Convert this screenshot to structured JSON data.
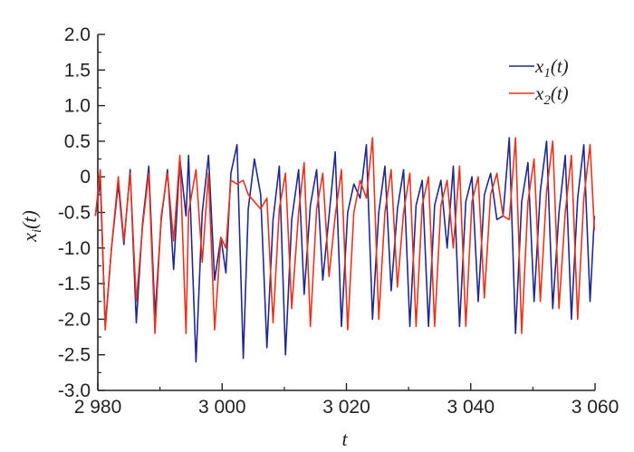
{
  "chart_data": {
    "type": "line",
    "xlabel": "t",
    "ylabel": "x_i(t)",
    "xlim": [
      2980,
      3060
    ],
    "ylim": [
      -3.0,
      2.0
    ],
    "x_ticks": [
      2980,
      3000,
      3020,
      3040,
      3060
    ],
    "x_tick_labels": [
      "2 980",
      "3 000",
      "3 020",
      "3 040",
      "3 060"
    ],
    "y_ticks": [
      -3.0,
      -2.5,
      -2.0,
      -1.5,
      -1.0,
      -0.5,
      0,
      0.5,
      1.0,
      1.5,
      2.0
    ],
    "y_tick_labels": [
      "-3.0",
      "-2.5",
      "-2.0",
      "-1.5",
      "-1.0",
      "-0.5",
      "0",
      "0.5",
      "1.0",
      "1.5",
      "2.0"
    ],
    "legend_position": "top-right",
    "grid": false,
    "series": [
      {
        "name": "x1(t)",
        "color": "#1f2a8c",
        "x": [
          2979.6,
          2980.4,
          2981.2,
          2982.2,
          2983.3,
          2984.2,
          2985.2,
          2986.2,
          2987.2,
          2988.2,
          2989.2,
          2990.2,
          2991.2,
          2992.2,
          2993.2,
          2994.2,
          2994.6,
          2995.8,
          2996.8,
          2997.8,
          2998.8,
          2999.8,
          3000.6,
          3001.4,
          3002.4,
          3003.4,
          3004.2,
          3005.2,
          3006.2,
          3007.2,
          3008.2,
          3009.2,
          3010.2,
          3011.2,
          3012.3,
          3013.2,
          3014.2,
          3015.2,
          3016.2,
          3017.2,
          3018.2,
          3019.2,
          3020.2,
          3021.2,
          3022.2,
          3023.2,
          3024.2,
          3025.2,
          3026.2,
          3027.2,
          3028.2,
          3029.2,
          3030.2,
          3031.2,
          3032.2,
          3033.2,
          3034.2,
          3035.2,
          3036.2,
          3037.2,
          3038.2,
          3039.2,
          3040.2,
          3041.2,
          3042.2,
          3043.2,
          3044.2,
          3045.2,
          3046.2,
          3047.2,
          3048.2,
          3049.2,
          3050.2,
          3051.2,
          3052.2,
          3053.2,
          3054.2,
          3055.2,
          3056.2,
          3057.2,
          3058.2,
          3059.2,
          3059.9
        ],
        "y": [
          -0.55,
          -0.05,
          -2.1,
          -1.0,
          -0.1,
          -0.95,
          0.1,
          -2.05,
          -0.65,
          0.15,
          -1.95,
          -0.6,
          0.1,
          -1.3,
          0.25,
          -0.55,
          0.3,
          -2.6,
          -0.5,
          0.3,
          -1.45,
          -0.85,
          -1.35,
          0.05,
          0.45,
          -2.55,
          -0.45,
          0.25,
          -0.25,
          -2.4,
          -0.6,
          0.15,
          -2.5,
          -0.6,
          0.1,
          -1.65,
          -0.4,
          0.1,
          -1.45,
          -0.55,
          0.35,
          -2.1,
          -0.5,
          -0.1,
          -0.3,
          0.45,
          -2.0,
          -0.5,
          0.15,
          -1.6,
          -0.45,
          0.1,
          -2.1,
          -0.4,
          -0.05,
          -2.1,
          -0.4,
          -0.05,
          -1.0,
          0.15,
          -2.1,
          -0.35,
          0.0,
          -1.75,
          -0.25,
          0.05,
          -0.6,
          -0.55,
          0.55,
          -2.2,
          -0.35,
          0.2,
          -1.75,
          -0.2,
          0.5,
          -1.85,
          -0.5,
          0.3,
          -2.0,
          -0.3,
          0.45,
          -1.75,
          -0.55
        ]
      },
      {
        "name": "x2(t)",
        "color": "#e8341c",
        "x": [
          2979.6,
          2980.4,
          2981.2,
          2982.2,
          2983.3,
          2984.2,
          2985.2,
          2986.2,
          2987.2,
          2988.2,
          2989.2,
          2990.2,
          2991.2,
          2992.2,
          2993.2,
          2994.2,
          2994.6,
          2995.8,
          2996.8,
          2997.8,
          2998.8,
          2999.8,
          3000.6,
          3001.4,
          3002.4,
          3003.4,
          3004.2,
          3005.2,
          3006.2,
          3007.2,
          3008.2,
          3009.2,
          3010.2,
          3011.2,
          3012.3,
          3013.2,
          3014.2,
          3015.2,
          3016.2,
          3017.2,
          3018.2,
          3019.2,
          3020.2,
          3021.2,
          3022.2,
          3023.2,
          3024.2,
          3025.2,
          3026.2,
          3027.2,
          3028.2,
          3029.2,
          3030.2,
          3031.2,
          3032.2,
          3033.2,
          3034.2,
          3035.2,
          3036.2,
          3037.2,
          3038.2,
          3039.2,
          3040.2,
          3041.2,
          3042.2,
          3043.2,
          3044.2,
          3045.2,
          3046.2,
          3047.2,
          3048.2,
          3049.2,
          3050.2,
          3051.2,
          3052.2,
          3053.2,
          3054.2,
          3055.2,
          3056.2,
          3057.2,
          3058.2,
          3059.2,
          3059.9
        ],
        "y": [
          -0.55,
          0.1,
          -2.15,
          -1.0,
          0.0,
          -0.9,
          0.05,
          -1.75,
          -0.7,
          0.05,
          -2.2,
          -0.55,
          0.05,
          -0.9,
          0.3,
          -2.2,
          -0.5,
          0.1,
          -1.2,
          0.05,
          -2.15,
          -0.85,
          -1.0,
          -0.05,
          -0.1,
          -0.05,
          -0.25,
          -0.35,
          -0.45,
          -0.3,
          -2.05,
          -0.45,
          0.05,
          -1.85,
          -0.5,
          0.2,
          -2.1,
          -0.45,
          0.05,
          -1.4,
          -0.55,
          0.1,
          -2.15,
          -0.5,
          -0.05,
          -0.3,
          0.55,
          -2.0,
          -0.5,
          0.1,
          -1.55,
          -0.5,
          0.05,
          -2.1,
          -0.4,
          0.0,
          -2.1,
          -0.4,
          -0.05,
          -1.0,
          0.15,
          -2.1,
          -0.35,
          0.0,
          -1.7,
          -0.25,
          0.05,
          -0.55,
          -0.6,
          0.55,
          -2.2,
          -0.35,
          0.25,
          -1.75,
          -0.2,
          0.5,
          -1.85,
          -0.5,
          0.3,
          -2.0,
          -0.3,
          0.45,
          -0.75
        ]
      }
    ]
  }
}
